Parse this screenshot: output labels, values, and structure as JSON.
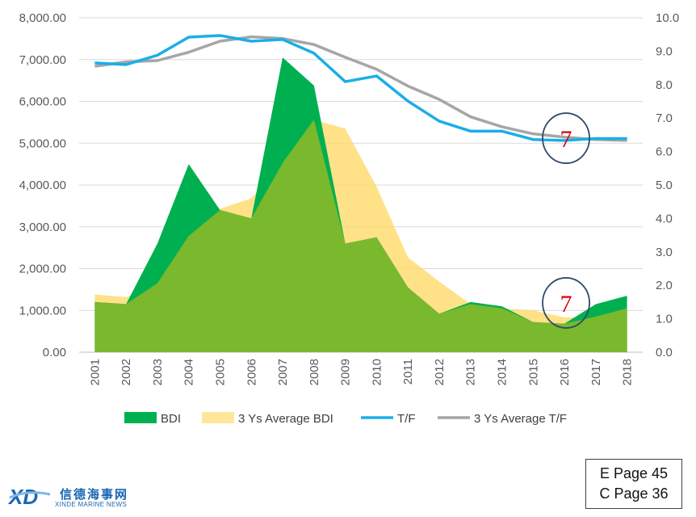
{
  "chart_data": {
    "type": "area",
    "categories": [
      "2001",
      "2002",
      "2003",
      "2004",
      "2005",
      "2006",
      "2007",
      "2008",
      "2009",
      "2010",
      "2011",
      "2012",
      "2013",
      "2014",
      "2015",
      "2016",
      "2017",
      "2018"
    ],
    "y_left": {
      "ylim": [
        0,
        8000
      ],
      "ticks": [
        "0.00",
        "1,000.00",
        "2,000.00",
        "3,000.00",
        "4,000.00",
        "5,000.00",
        "6,000.00",
        "7,000.00",
        "8,000.00"
      ]
    },
    "y_right": {
      "ylim": [
        0,
        10
      ],
      "ticks": [
        "0.0",
        "1.0",
        "2.0",
        "3.0",
        "4.0",
        "5.0",
        "6.0",
        "7.0",
        "8.0",
        "9.0",
        "10.0"
      ]
    },
    "series": [
      {
        "name": "BDI",
        "type": "area",
        "axis": "left",
        "color": "#00b050",
        "values": [
          1200,
          1150,
          2600,
          4500,
          3400,
          3200,
          7050,
          6380,
          2600,
          2750,
          1550,
          920,
          1200,
          1100,
          720,
          680,
          1150,
          1350
        ]
      },
      {
        "name": "3 Ys Average BDI",
        "type": "area",
        "axis": "left",
        "color": "#ffd966",
        "values": [
          1380,
          1320,
          1650,
          2780,
          3430,
          3680,
          4530,
          5560,
          5350,
          3960,
          2270,
          1690,
          1150,
          1050,
          1000,
          830,
          850,
          1050
        ]
      },
      {
        "name": "T/F",
        "type": "line",
        "axis": "right",
        "color": "#1aaee8",
        "values": [
          8.65,
          8.6,
          8.88,
          9.42,
          9.47,
          9.3,
          9.35,
          8.94,
          8.09,
          8.26,
          7.51,
          6.91,
          6.61,
          6.61,
          6.36,
          6.33,
          6.39,
          6.39
        ]
      },
      {
        "name": "3 Ys Average T/F",
        "type": "line",
        "axis": "right",
        "color": "#a6a6a6",
        "values": [
          8.55,
          8.68,
          8.72,
          8.97,
          9.3,
          9.43,
          9.38,
          9.2,
          8.82,
          8.46,
          7.96,
          7.56,
          7.04,
          6.74,
          6.53,
          6.43,
          6.36,
          6.33
        ]
      }
    ],
    "legend_position": "bottom",
    "grid": true,
    "annotations": [
      {
        "text": "7",
        "axis": "right",
        "x": "2016",
        "y": 6.4
      },
      {
        "text": "7",
        "axis": "left",
        "x": "2016",
        "y": 1180
      }
    ]
  },
  "page_ref": {
    "e_page": "E Page 45",
    "c_page": "C Page 36"
  },
  "logo": {
    "mark": "XD",
    "chinese": "信德海事网",
    "english": "XINDE MARINE NEWS"
  },
  "colors": {
    "logo_blue": "#1a66b3",
    "grid": "#d9d9d9",
    "circle": "#2e4a6b"
  }
}
